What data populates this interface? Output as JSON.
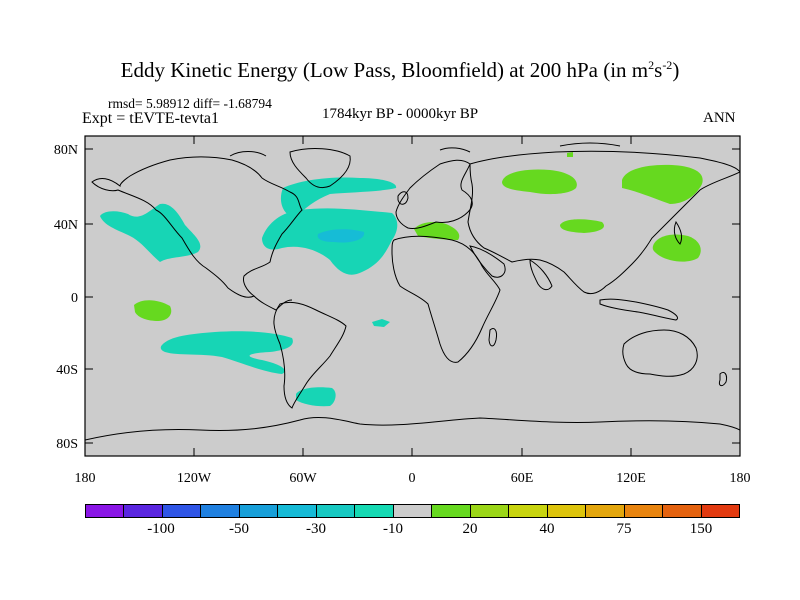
{
  "title": {
    "main": "Eddy Kinetic Energy (Low Pass, Bloomfield) at 200 hPa (in m",
    "sup1": "2",
    "mid": "s",
    "sup2": "-2",
    "end": ")"
  },
  "stats": "rmsd= 5.98912 diff= -1.68794",
  "experiment": "Expt = tEVTE-tevta1",
  "period": "1784kyr BP - 0000kyr BP",
  "season": "ANN",
  "axes": {
    "lon_ticks": [
      "180",
      "120W",
      "60W",
      "0",
      "60E",
      "120E",
      "180"
    ],
    "lat_ticks": [
      "80N",
      "40N",
      "0",
      "40S",
      "80S"
    ]
  },
  "colorbar": {
    "colors": [
      "#8a16e6",
      "#5a26e0",
      "#2f55e6",
      "#1f80e0",
      "#179fd9",
      "#16bad6",
      "#17c9c2",
      "#15d9b3",
      "#cccccc",
      "#66d91f",
      "#9bd617",
      "#c8d40f",
      "#ddc40c",
      "#e3a60d",
      "#e8840f",
      "#e4620f",
      "#e23a10"
    ],
    "labels": [
      "-100",
      "-50",
      "-30",
      "-10",
      "20",
      "40",
      "75",
      "150"
    ]
  },
  "legend_colors": {
    "negative_anomaly": "#17d5b5",
    "strong_negative": "#16bcd6",
    "positive_anomaly": "#66d91f",
    "neutral": "#cccccc"
  }
}
